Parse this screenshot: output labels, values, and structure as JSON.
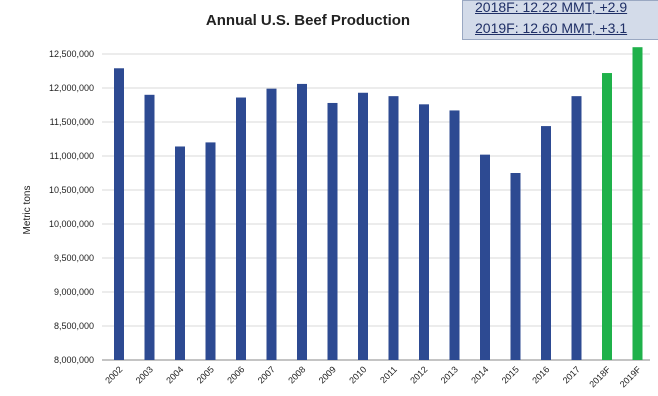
{
  "chart_data": {
    "type": "bar",
    "title": "Annual U.S. Beef Production",
    "ylabel": "Metric tons",
    "xlabel": "",
    "ylim": [
      8000000,
      12500000
    ],
    "yticks": [
      "12,500,000",
      "12,000,000",
      "11,500,000",
      "11,000,000",
      "10,500,000",
      "10,000,000",
      "9,500,000",
      "9,000,000",
      "8,500,000",
      "8,000,000"
    ],
    "categories": [
      "2002",
      "2003",
      "2004",
      "2005",
      "2006",
      "2007",
      "2008",
      "2009",
      "2010",
      "2011",
      "2012",
      "2013",
      "2014",
      "2015",
      "2016",
      "2017",
      "2018F",
      "2019F"
    ],
    "values": [
      12290000,
      11900000,
      11140000,
      11200000,
      11860000,
      11990000,
      12060000,
      11780000,
      11930000,
      11880000,
      11760000,
      11670000,
      11020000,
      10750000,
      11440000,
      11880000,
      12220000,
      12600000
    ],
    "colors": [
      "#2d4a92",
      "#2d4a92",
      "#2d4a92",
      "#2d4a92",
      "#2d4a92",
      "#2d4a92",
      "#2d4a92",
      "#2d4a92",
      "#2d4a92",
      "#2d4a92",
      "#2d4a92",
      "#2d4a92",
      "#2d4a92",
      "#2d4a92",
      "#2d4a92",
      "#2d4a92",
      "#1fb14a",
      "#1fb14a"
    ],
    "grid": true,
    "annotations": [
      "2018F: 12.22 MMT, +2.9",
      "2019F: 12.60 MMT, +3.1"
    ]
  }
}
